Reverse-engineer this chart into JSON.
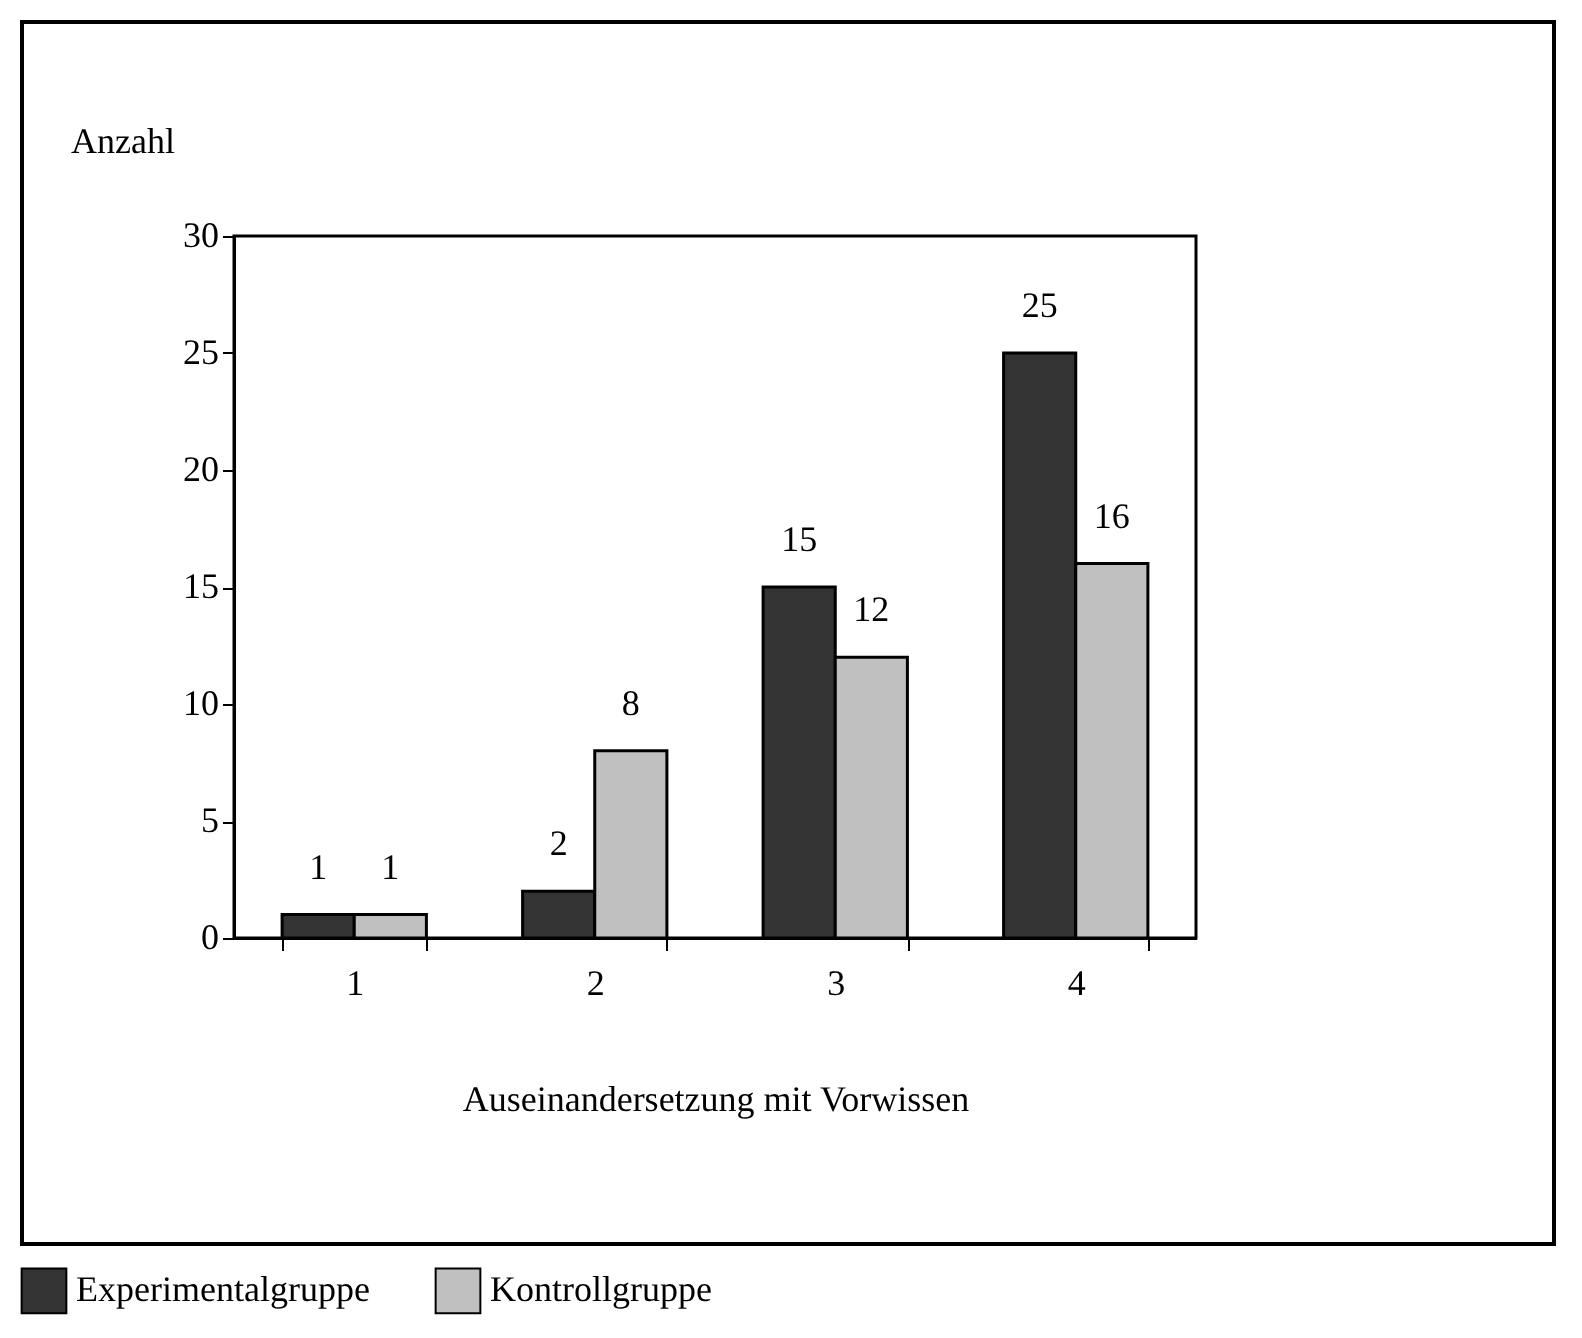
{
  "chart_data": {
    "type": "bar",
    "xlabel": "Auseinandersetzung mit Vorwissen",
    "ylabel": "Anzahl",
    "categories": [
      "1",
      "2",
      "3",
      "4"
    ],
    "series": [
      {
        "name": "Experimentalgruppe",
        "color": "#333333",
        "values": [
          1,
          2,
          15,
          25
        ]
      },
      {
        "name": "Kontrollgruppe",
        "color": "#c0c0c0",
        "values": [
          1,
          8,
          12,
          16
        ]
      }
    ],
    "ylim": [
      0,
      30
    ],
    "yticks": [
      0,
      5,
      10,
      15,
      20,
      25,
      30
    ],
    "grid": false,
    "legend": "bottom left",
    "data_labels": true
  }
}
